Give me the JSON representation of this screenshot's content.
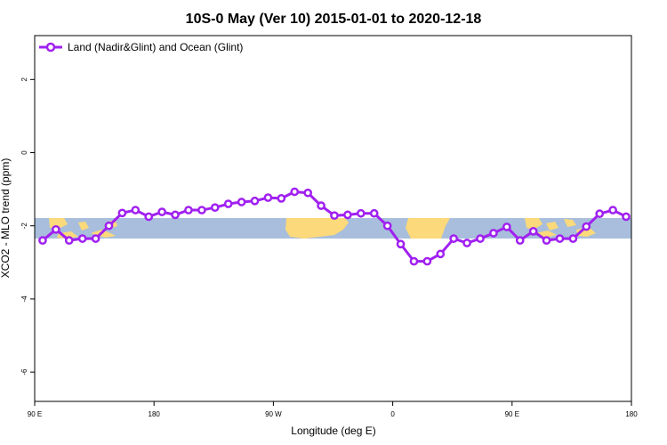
{
  "chart_data": {
    "type": "line",
    "title": "10S-0 May (Ver 10)   2015-01-01 to 2020-12-18",
    "xlabel": "Longitude (deg E)",
    "ylabel": "XCO2 - MLO trend (ppm)",
    "x_ticks": [
      {
        "pos": 90,
        "label": "90 E"
      },
      {
        "pos": 180,
        "label": "180"
      },
      {
        "pos": 270,
        "label": "90 W"
      },
      {
        "pos": 360,
        "label": "0"
      },
      {
        "pos": 450,
        "label": "90 E"
      },
      {
        "pos": 540,
        "label": "180"
      }
    ],
    "y_ticks": [
      2,
      0,
      -2,
      -4,
      -6
    ],
    "xlim": [
      90,
      540
    ],
    "ylim": [
      -6.8,
      3.2
    ],
    "legend_position": "top-left",
    "series": [
      {
        "name": "Land (Nadir&Glint) and Ocean (Glint)",
        "color": "#a020f0",
        "x": [
          96,
          106,
          116,
          126,
          136,
          146,
          156,
          166,
          176,
          186,
          196,
          206,
          216,
          226,
          236,
          246,
          256,
          266,
          276,
          286,
          296,
          306,
          316,
          326,
          336,
          346,
          356,
          366,
          376,
          386,
          396,
          406,
          416,
          426,
          436,
          446,
          456,
          466,
          476,
          486,
          496,
          506,
          516,
          526,
          536
        ],
        "y": [
          -2.4,
          -2.1,
          -2.4,
          -2.35,
          -2.35,
          -2.0,
          -1.65,
          -1.57,
          -1.75,
          -1.62,
          -1.7,
          -1.57,
          -1.57,
          -1.5,
          -1.4,
          -1.35,
          -1.32,
          -1.23,
          -1.25,
          -1.07,
          -1.1,
          -1.45,
          -1.72,
          -1.7,
          -1.66,
          -1.66,
          -2.0,
          -2.5,
          -2.97,
          -2.97,
          -2.77,
          -2.35,
          -2.47,
          -2.35,
          -2.2,
          -2.03,
          -2.4,
          -2.15,
          -2.4,
          -2.35,
          -2.35,
          -2.02,
          -1.67,
          -1.57,
          -1.75
        ]
      }
    ]
  },
  "colors": {
    "ocean_band": "#a8bedc",
    "land_band": "#fcd97a"
  }
}
